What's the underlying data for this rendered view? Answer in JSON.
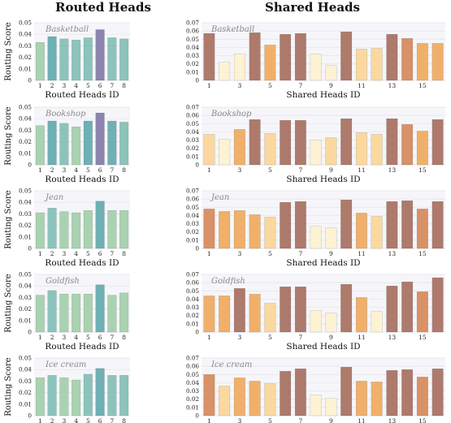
{
  "headers": {
    "left": "Routed Heads",
    "right": "Shared Heads"
  },
  "colors": {
    "routed_green": "#a9d3b0",
    "routed_teal": "#8cc4bc",
    "routed_teal_dark": "#6fb0b4",
    "routed_purple": "#8b84ad",
    "shared_cream": "#fdf3d3",
    "shared_light": "#fbd8a0",
    "shared_orange": "#f0b06a",
    "shared_deep": "#d99167",
    "shared_brown": "#ad7a6c"
  },
  "chart_data": [
    {
      "type": "bar",
      "group": "routed",
      "annotation": "Basketball",
      "xlabel": "Routed Heads ID",
      "ylabel": "Routing Score",
      "ylim": [
        0,
        0.05
      ],
      "yticks": [
        "0",
        "0.01",
        "0.02",
        "0.03",
        "0.04",
        "0.05"
      ],
      "categories": [
        "1",
        "2",
        "3",
        "4",
        "5",
        "6",
        "7",
        "8"
      ],
      "values": [
        0.033,
        0.038,
        0.036,
        0.035,
        0.037,
        0.044,
        0.037,
        0.036
      ]
    },
    {
      "type": "bar",
      "group": "shared",
      "annotation": "Basketball",
      "xlabel": "Shared Heads ID",
      "ylim": [
        0,
        0.07
      ],
      "yticks": [
        "0",
        "0.01",
        "0.02",
        "0.03",
        "0.04",
        "0.05",
        "0.06",
        "0.07"
      ],
      "xticks": [
        "1",
        "3",
        "5",
        "7",
        "9",
        "11",
        "13",
        "15"
      ],
      "categories": [
        "1",
        "2",
        "3",
        "4",
        "5",
        "6",
        "7",
        "8",
        "9",
        "10",
        "11",
        "12",
        "13",
        "14",
        "15",
        "16"
      ],
      "values": [
        0.057,
        0.022,
        0.032,
        0.058,
        0.043,
        0.056,
        0.057,
        0.032,
        0.018,
        0.059,
        0.038,
        0.039,
        0.056,
        0.051,
        0.045,
        0.045
      ]
    },
    {
      "type": "bar",
      "group": "routed",
      "annotation": "Bookshop",
      "xlabel": "Routed Heads ID",
      "ylabel": "Routing Score",
      "ylim": [
        0,
        0.05
      ],
      "yticks": [
        "0",
        "0.01",
        "0.02",
        "0.03",
        "0.04",
        "0.05"
      ],
      "categories": [
        "1",
        "2",
        "3",
        "4",
        "5",
        "6",
        "7",
        "8"
      ],
      "values": [
        0.034,
        0.038,
        0.036,
        0.033,
        0.038,
        0.045,
        0.038,
        0.037
      ]
    },
    {
      "type": "bar",
      "group": "shared",
      "annotation": "Bookshop",
      "xlabel": "Shared Heads ID",
      "ylim": [
        0,
        0.07
      ],
      "yticks": [
        "0",
        "0.01",
        "0.02",
        "0.03",
        "0.04",
        "0.05",
        "0.06",
        "0.07"
      ],
      "xticks": [
        "1",
        "3",
        "5",
        "7",
        "9",
        "11",
        "13",
        "15"
      ],
      "categories": [
        "1",
        "2",
        "3",
        "4",
        "5",
        "6",
        "7",
        "8",
        "9",
        "10",
        "11",
        "12",
        "13",
        "14",
        "15",
        "16"
      ],
      "values": [
        0.037,
        0.031,
        0.043,
        0.055,
        0.038,
        0.054,
        0.054,
        0.03,
        0.033,
        0.056,
        0.039,
        0.037,
        0.056,
        0.049,
        0.041,
        0.055
      ]
    },
    {
      "type": "bar",
      "group": "routed",
      "annotation": "Jean",
      "xlabel": "Routed Heads ID",
      "ylabel": "Routing Score",
      "ylim": [
        0,
        0.05
      ],
      "yticks": [
        "0",
        "0.01",
        "0.02",
        "0.03",
        "0.04",
        "0.05"
      ],
      "categories": [
        "1",
        "2",
        "3",
        "4",
        "5",
        "6",
        "7",
        "8"
      ],
      "values": [
        0.031,
        0.035,
        0.032,
        0.031,
        0.033,
        0.041,
        0.033,
        0.033
      ]
    },
    {
      "type": "bar",
      "group": "shared",
      "annotation": "Jean",
      "xlabel": "Shared Heads ID",
      "ylim": [
        0,
        0.07
      ],
      "yticks": [
        "0",
        "0.01",
        "0.02",
        "0.03",
        "0.04",
        "0.05",
        "0.06",
        "0.07"
      ],
      "xticks": [
        "1",
        "3",
        "5",
        "7",
        "9",
        "11",
        "13",
        "15"
      ],
      "categories": [
        "1",
        "2",
        "3",
        "4",
        "5",
        "6",
        "7",
        "8",
        "9",
        "10",
        "11",
        "12",
        "13",
        "14",
        "15",
        "16"
      ],
      "values": [
        0.048,
        0.045,
        0.046,
        0.041,
        0.038,
        0.056,
        0.057,
        0.027,
        0.025,
        0.059,
        0.043,
        0.039,
        0.057,
        0.058,
        0.048,
        0.057
      ]
    },
    {
      "type": "bar",
      "group": "routed",
      "annotation": "Goldfish",
      "xlabel": "Routed Heads ID",
      "ylabel": "Routing Score",
      "ylim": [
        0,
        0.05
      ],
      "yticks": [
        "0",
        "0.01",
        "0.02",
        "0.03",
        "0.04",
        "0.05"
      ],
      "categories": [
        "1",
        "2",
        "3",
        "4",
        "5",
        "6",
        "7",
        "8"
      ],
      "values": [
        0.032,
        0.036,
        0.033,
        0.033,
        0.033,
        0.041,
        0.032,
        0.034
      ]
    },
    {
      "type": "bar",
      "group": "shared",
      "annotation": "Goldfish",
      "xlabel": "Shared Heads ID",
      "ylim": [
        0,
        0.07
      ],
      "yticks": [
        "0",
        "0.01",
        "0.02",
        "0.03",
        "0.04",
        "0.05",
        "0.06",
        "0.07"
      ],
      "xticks": [
        "1",
        "3",
        "5",
        "7",
        "9",
        "11",
        "13",
        "15"
      ],
      "categories": [
        "1",
        "2",
        "3",
        "4",
        "5",
        "6",
        "7",
        "8",
        "9",
        "10",
        "11",
        "12",
        "13",
        "14",
        "15",
        "16"
      ],
      "values": [
        0.044,
        0.044,
        0.053,
        0.046,
        0.035,
        0.055,
        0.055,
        0.026,
        0.023,
        0.058,
        0.042,
        0.025,
        0.056,
        0.061,
        0.049,
        0.066
      ]
    },
    {
      "type": "bar",
      "group": "routed",
      "annotation": "Ice cream",
      "xlabel": "Routed Heads ID",
      "ylabel": "Routing Score",
      "ylim": [
        0,
        0.05
      ],
      "yticks": [
        "0",
        "0.01",
        "0.02",
        "0.03",
        "0.04",
        "0.05"
      ],
      "categories": [
        "1",
        "2",
        "3",
        "4",
        "5",
        "6",
        "7",
        "8"
      ],
      "values": [
        0.033,
        0.035,
        0.033,
        0.031,
        0.036,
        0.041,
        0.035,
        0.035
      ]
    },
    {
      "type": "bar",
      "group": "shared",
      "annotation": "Ice cream",
      "xlabel": "Shared Heads ID",
      "ylim": [
        0,
        0.07
      ],
      "yticks": [
        "0",
        "0.01",
        "0.02",
        "0.03",
        "0.04",
        "0.05",
        "0.06",
        "0.07"
      ],
      "xticks": [
        "1",
        "3",
        "5",
        "7",
        "9",
        "11",
        "13",
        "15"
      ],
      "categories": [
        "1",
        "2",
        "3",
        "4",
        "5",
        "6",
        "7",
        "8",
        "9",
        "10",
        "11",
        "12",
        "13",
        "14",
        "15",
        "16"
      ],
      "values": [
        0.05,
        0.036,
        0.046,
        0.042,
        0.039,
        0.054,
        0.057,
        0.025,
        0.021,
        0.059,
        0.042,
        0.041,
        0.055,
        0.056,
        0.047,
        0.057
      ]
    }
  ]
}
